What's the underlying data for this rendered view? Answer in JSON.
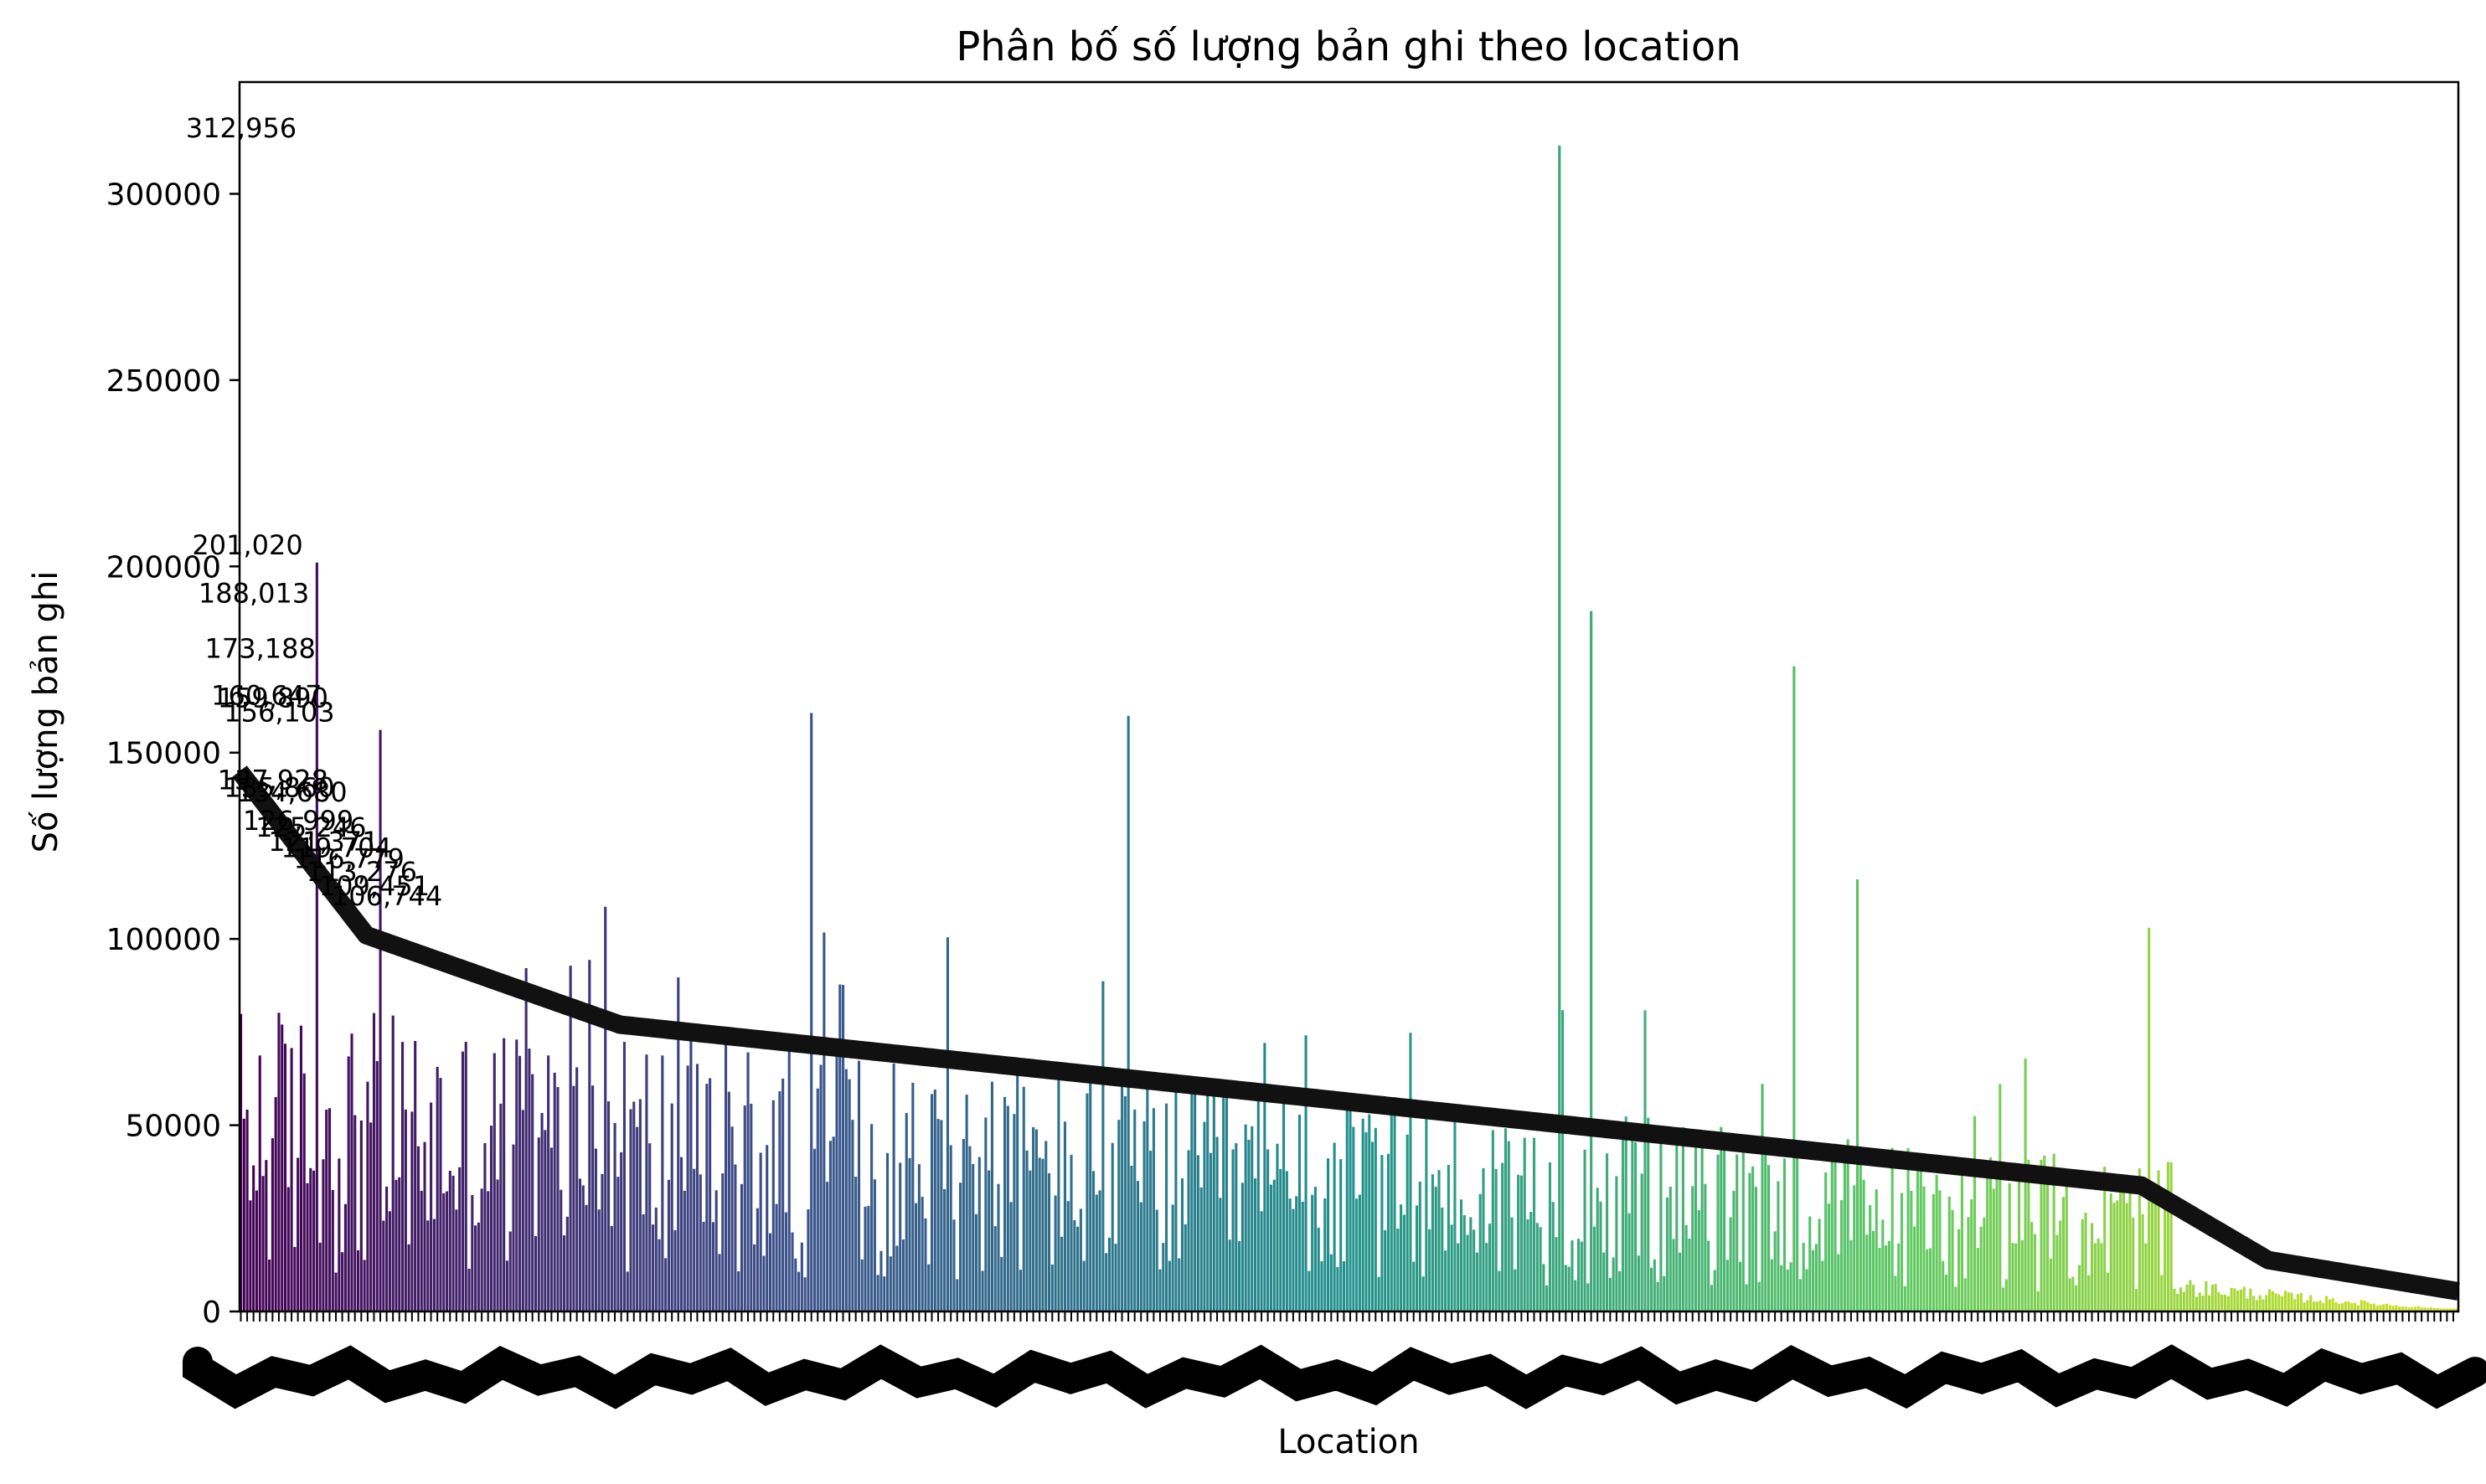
{
  "chart_data": {
    "type": "bar",
    "title": "Phân bố số lượng bản ghi theo location",
    "xlabel": "Location",
    "ylabel": "Số lượng bản ghi",
    "ylim": [
      0,
      330000
    ],
    "yticks": [
      0,
      50000,
      100000,
      150000,
      200000,
      250000,
      300000
    ],
    "ytick_labels": [
      "0",
      "50000",
      "100000",
      "150000",
      "200000",
      "250000",
      "300000"
    ],
    "grid": false,
    "legend": "none",
    "colormap": "viridis",
    "colors": {
      "viridis_start": "#440154",
      "viridis_mid": "#21918c",
      "viridis_end": "#d8e219"
    },
    "bar_count": 700,
    "notable_bars": [
      {
        "index": 24,
        "value": 201020
      },
      {
        "index": 44,
        "value": 156103
      },
      {
        "index": 180,
        "value": 160647
      },
      {
        "index": 280,
        "value": 159890
      },
      {
        "index": 416,
        "value": 312956
      },
      {
        "index": 426,
        "value": 188013
      },
      {
        "index": 490,
        "value": 173188
      },
      {
        "index": 510,
        "value": 116000
      },
      {
        "index": 602,
        "value": 103000
      }
    ],
    "data_labels": [
      {
        "text": "312,956",
        "value": 312956,
        "offset": 0
      },
      {
        "text": "201,020",
        "value": 201020,
        "offset": 2
      },
      {
        "text": "188,013",
        "value": 188013,
        "offset": 4
      },
      {
        "text": "173,188",
        "value": 173188,
        "offset": 6
      },
      {
        "text": "160,647",
        "value": 160647,
        "offset": 8
      },
      {
        "text": "159,890",
        "value": 159890,
        "offset": 10
      },
      {
        "text": "156,103",
        "value": 156103,
        "offset": 12
      },
      {
        "text": "137,928",
        "value": 137928,
        "offset": 10
      },
      {
        "text": "135,860",
        "value": 135860,
        "offset": 12
      },
      {
        "text": "134,680",
        "value": 134680,
        "offset": 16
      },
      {
        "text": "126,999",
        "value": 126999,
        "offset": 18
      },
      {
        "text": "125,246",
        "value": 125246,
        "offset": 22
      },
      {
        "text": "121,371",
        "value": 121371,
        "offset": 26
      },
      {
        "text": "119,704",
        "value": 119704,
        "offset": 30
      },
      {
        "text": "116,779",
        "value": 116779,
        "offset": 34
      },
      {
        "text": "113,276",
        "value": 113276,
        "offset": 38
      },
      {
        "text": "109,451",
        "value": 109451,
        "offset": 42
      },
      {
        "text": "106,744",
        "value": 106744,
        "offset": 46
      }
    ]
  }
}
